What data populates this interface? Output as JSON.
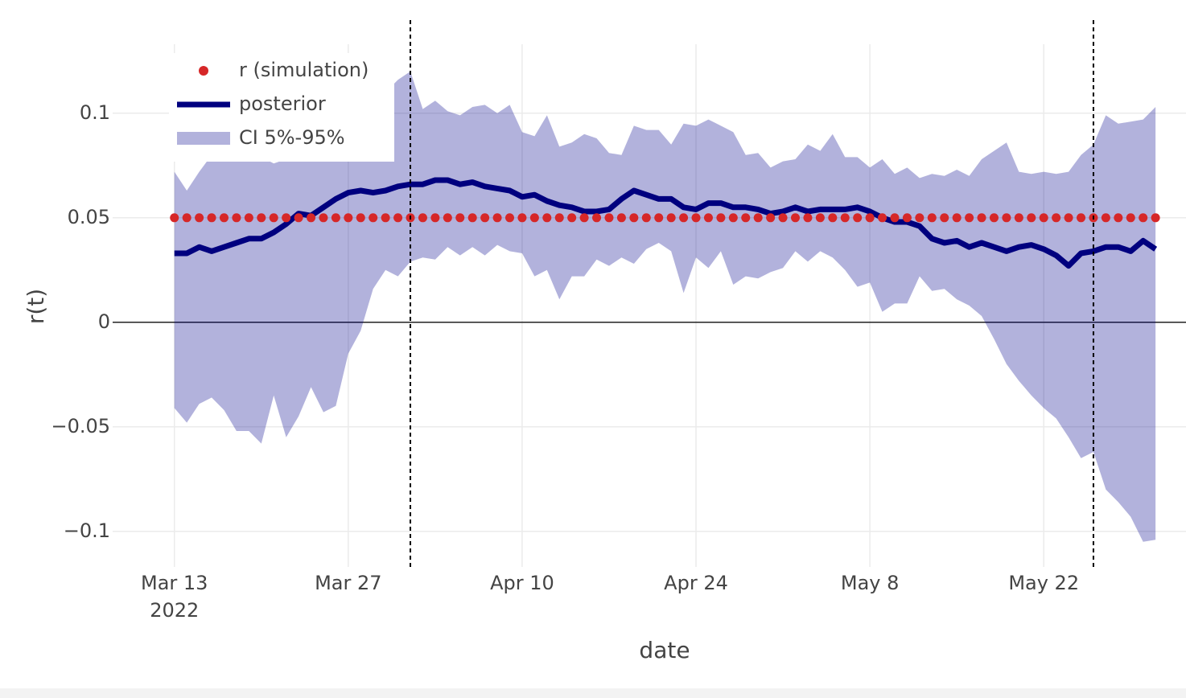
{
  "chart_data": {
    "type": "line",
    "xlabel": "date",
    "ylabel": "r(t)",
    "x": [
      "2022-03-13",
      "2022-03-14",
      "2022-03-15",
      "2022-03-16",
      "2022-03-17",
      "2022-03-18",
      "2022-03-19",
      "2022-03-20",
      "2022-03-21",
      "2022-03-22",
      "2022-03-23",
      "2022-03-24",
      "2022-03-25",
      "2022-03-26",
      "2022-03-27",
      "2022-03-28",
      "2022-03-29",
      "2022-03-30",
      "2022-03-31",
      "2022-04-01",
      "2022-04-02",
      "2022-04-03",
      "2022-04-04",
      "2022-04-05",
      "2022-04-06",
      "2022-04-07",
      "2022-04-08",
      "2022-04-09",
      "2022-04-10",
      "2022-04-11",
      "2022-04-12",
      "2022-04-13",
      "2022-04-14",
      "2022-04-15",
      "2022-04-16",
      "2022-04-17",
      "2022-04-18",
      "2022-04-19",
      "2022-04-20",
      "2022-04-21",
      "2022-04-22",
      "2022-04-23",
      "2022-04-24",
      "2022-04-25",
      "2022-04-26",
      "2022-04-27",
      "2022-04-28",
      "2022-04-29",
      "2022-04-30",
      "2022-05-01",
      "2022-05-02",
      "2022-05-03",
      "2022-05-04",
      "2022-05-05",
      "2022-05-06",
      "2022-05-07",
      "2022-05-08",
      "2022-05-09",
      "2022-05-10",
      "2022-05-11",
      "2022-05-12",
      "2022-05-13",
      "2022-05-14",
      "2022-05-15",
      "2022-05-16",
      "2022-05-17",
      "2022-05-18",
      "2022-05-19",
      "2022-05-20",
      "2022-05-21",
      "2022-05-22",
      "2022-05-23",
      "2022-05-24",
      "2022-05-25",
      "2022-05-26",
      "2022-05-27",
      "2022-05-28",
      "2022-05-29",
      "2022-05-30",
      "2022-05-31"
    ],
    "series": [
      {
        "name": "r (simulation)",
        "kind": "markers",
        "color": "#d62728",
        "values": [
          0.05,
          0.05,
          0.05,
          0.05,
          0.05,
          0.05,
          0.05,
          0.05,
          0.05,
          0.05,
          0.05,
          0.05,
          0.05,
          0.05,
          0.05,
          0.05,
          0.05,
          0.05,
          0.05,
          0.05,
          0.05,
          0.05,
          0.05,
          0.05,
          0.05,
          0.05,
          0.05,
          0.05,
          0.05,
          0.05,
          0.05,
          0.05,
          0.05,
          0.05,
          0.05,
          0.05,
          0.05,
          0.05,
          0.05,
          0.05,
          0.05,
          0.05,
          0.05,
          0.05,
          0.05,
          0.05,
          0.05,
          0.05,
          0.05,
          0.05,
          0.05,
          0.05,
          0.05,
          0.05,
          0.05,
          0.05,
          0.05,
          0.05,
          0.05,
          0.05,
          0.05,
          0.05,
          0.05,
          0.05,
          0.05,
          0.05,
          0.05,
          0.05,
          0.05,
          0.05,
          0.05,
          0.05,
          0.05,
          0.05,
          0.05,
          0.05,
          0.05,
          0.05,
          0.05,
          0.05
        ]
      },
      {
        "name": "posterior",
        "kind": "line",
        "color": "#00007f",
        "values": [
          0.033,
          0.033,
          0.036,
          0.034,
          0.036,
          0.038,
          0.04,
          0.04,
          0.043,
          0.047,
          0.052,
          0.051,
          0.055,
          0.059,
          0.062,
          0.063,
          0.062,
          0.063,
          0.065,
          0.066,
          0.066,
          0.068,
          0.068,
          0.066,
          0.067,
          0.065,
          0.064,
          0.063,
          0.06,
          0.061,
          0.058,
          0.056,
          0.055,
          0.053,
          0.053,
          0.054,
          0.059,
          0.063,
          0.061,
          0.059,
          0.059,
          0.055,
          0.054,
          0.057,
          0.057,
          0.055,
          0.055,
          0.054,
          0.052,
          0.053,
          0.055,
          0.053,
          0.054,
          0.054,
          0.054,
          0.055,
          0.053,
          0.05,
          0.048,
          0.048,
          0.046,
          0.04,
          0.038,
          0.039,
          0.036,
          0.038,
          0.036,
          0.034,
          0.036,
          0.037,
          0.035,
          0.032,
          0.027,
          0.033,
          0.034,
          0.036,
          0.036,
          0.034,
          0.039,
          0.035
        ]
      },
      {
        "name": "CI 5%-95%",
        "kind": "band",
        "color": "#00008b",
        "upper": [
          0.072,
          0.063,
          0.072,
          0.08,
          0.083,
          0.082,
          0.08,
          0.079,
          0.076,
          0.078,
          0.08,
          0.082,
          0.085,
          0.09,
          0.095,
          0.098,
          0.102,
          0.11,
          0.116,
          0.12,
          0.102,
          0.106,
          0.101,
          0.099,
          0.103,
          0.104,
          0.1,
          0.104,
          0.091,
          0.089,
          0.099,
          0.084,
          0.086,
          0.09,
          0.088,
          0.081,
          0.08,
          0.094,
          0.092,
          0.092,
          0.085,
          0.095,
          0.094,
          0.097,
          0.094,
          0.091,
          0.08,
          0.081,
          0.074,
          0.077,
          0.078,
          0.085,
          0.082,
          0.09,
          0.079,
          0.079,
          0.074,
          0.078,
          0.071,
          0.074,
          0.069,
          0.071,
          0.07,
          0.073,
          0.07,
          0.078,
          0.082,
          0.086,
          0.072,
          0.071,
          0.072,
          0.071,
          0.072,
          0.08,
          0.085,
          0.099,
          0.095,
          0.096,
          0.097,
          0.103
        ],
        "lower": [
          -0.041,
          -0.048,
          -0.039,
          -0.036,
          -0.042,
          -0.052,
          -0.052,
          -0.058,
          -0.035,
          -0.055,
          -0.045,
          -0.031,
          -0.043,
          -0.04,
          -0.015,
          -0.004,
          0.016,
          0.025,
          0.022,
          0.029,
          0.031,
          0.03,
          0.036,
          0.032,
          0.036,
          0.032,
          0.037,
          0.034,
          0.033,
          0.022,
          0.025,
          0.011,
          0.022,
          0.022,
          0.03,
          0.027,
          0.031,
          0.028,
          0.035,
          0.038,
          0.034,
          0.014,
          0.031,
          0.026,
          0.034,
          0.018,
          0.022,
          0.021,
          0.024,
          0.026,
          0.034,
          0.029,
          0.034,
          0.031,
          0.025,
          0.017,
          0.019,
          0.005,
          0.009,
          0.009,
          0.022,
          0.015,
          0.016,
          0.011,
          0.008,
          0.003,
          -0.008,
          -0.02,
          -0.028,
          -0.035,
          -0.041,
          -0.046,
          -0.055,
          -0.065,
          -0.062,
          -0.08,
          -0.086,
          -0.093,
          -0.105,
          -0.104
        ]
      }
    ],
    "vlines": [
      "2022-04-01",
      "2022-05-26"
    ],
    "xlim": [
      "2022-03-09",
      "2022-06-02"
    ],
    "xticks": [
      {
        "value": "2022-03-13",
        "label": "Mar 13"
      },
      {
        "value": "2022-03-27",
        "label": "Mar 27"
      },
      {
        "value": "2022-04-10",
        "label": "Apr 10"
      },
      {
        "value": "2022-04-24",
        "label": "Apr 24"
      },
      {
        "value": "2022-05-08",
        "label": "May 8"
      },
      {
        "value": "2022-05-22",
        "label": "May 22"
      }
    ],
    "x_year_label": "2022",
    "ylim": [
      -0.117,
      0.133
    ],
    "yticks": [
      {
        "value": -0.1,
        "label": "−0.1"
      },
      {
        "value": -0.05,
        "label": "−0.05"
      },
      0,
      0.05,
      0.1
    ],
    "grid": true
  }
}
